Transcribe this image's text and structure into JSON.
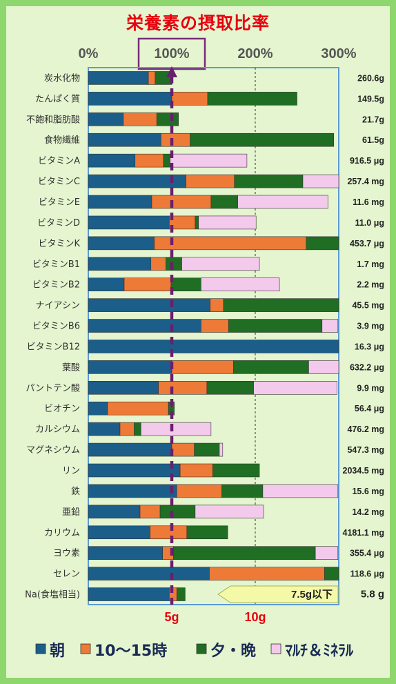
{
  "chart_data": {
    "type": "bar",
    "stacked": true,
    "orientation": "horizontal",
    "title": "栄養素の摂取比率",
    "x_ticks": [
      "0%",
      "100%",
      "200%",
      "300%"
    ],
    "xlim": [
      0,
      300
    ],
    "highlight_tick": "100%",
    "bottom_ticks": [
      "5g",
      "10g"
    ],
    "categories": [
      "炭水化物",
      "たんぱく質",
      "不飽和脂肪酸",
      "食物繊維",
      "ビタミンA",
      "ビタミンC",
      "ビタミンE",
      "ビタミンD",
      "ビタミンK",
      "ビタミンB1",
      "ビタミンB2",
      "ナイアシン",
      "ビタミンB6",
      "ビタミンB12",
      "葉酸",
      "パントテン酸",
      "ビオチン",
      "カルシウム",
      "マグネシウム",
      "リン",
      "鉄",
      "亜鉛",
      "カリウム",
      "ヨウ素",
      "セレン",
      "Na(食塩相当)"
    ],
    "amounts": [
      "260.6g",
      "149.5g",
      "21.7g",
      "61.5g",
      "916.5 μg",
      "257.4 mg",
      "11.6 mg",
      "11.0 μg",
      "453.7 μg",
      "1.7 mg",
      "2.2 mg",
      "45.5 mg",
      "3.9 mg",
      "16.3 μg",
      "632.2 μg",
      "9.9 mg",
      "56.4 μg",
      "476.2 mg",
      "547.3 mg",
      "2034.5 mg",
      "15.6 mg",
      "14.2 mg",
      "4181.1 mg",
      "355.4 μg",
      "118.6 μg",
      "5.8 g"
    ],
    "series": [
      {
        "name": "朝",
        "color": "#1b5e8a",
        "values": [
          72,
          100,
          42,
          87,
          56,
          117,
          76,
          97,
          79,
          75,
          43,
          146,
          135,
          300,
          100,
          84,
          23,
          38,
          100,
          110,
          106,
          62,
          74,
          89,
          145,
          97
        ]
      },
      {
        "name": "10～15時",
        "color": "#ee7a38",
        "values": [
          8,
          43,
          40,
          35,
          34,
          58,
          71,
          31,
          182,
          18,
          56,
          16,
          33,
          0,
          74,
          58,
          73,
          17,
          27,
          39,
          54,
          24,
          44,
          13,
          138,
          9
        ]
      },
      {
        "name": "夕・晩",
        "color": "#1f6e23",
        "values": [
          20,
          107,
          26,
          172,
          8,
          82,
          32,
          4,
          39,
          19,
          36,
          138,
          112,
          0,
          90,
          56,
          7,
          8,
          30,
          56,
          49,
          42,
          49,
          170,
          17,
          10
        ]
      },
      {
        "name": "ﾏﾙﾁ＆ﾐﾈﾗﾙ",
        "color": "#f3c9ec",
        "values": [
          0,
          0,
          0,
          0,
          92,
          43,
          108,
          69,
          0,
          93,
          94,
          0,
          19,
          0,
          37,
          100,
          0,
          84,
          4,
          0,
          90,
          82,
          0,
          27,
          0,
          0
        ]
      }
    ],
    "sodium_limit_label": "7.5g以下",
    "grid": true
  },
  "legend": {
    "items": [
      "朝",
      "10～15時",
      "夕・晩",
      "ﾏﾙﾁ＆ﾐﾈﾗﾙ"
    ]
  }
}
